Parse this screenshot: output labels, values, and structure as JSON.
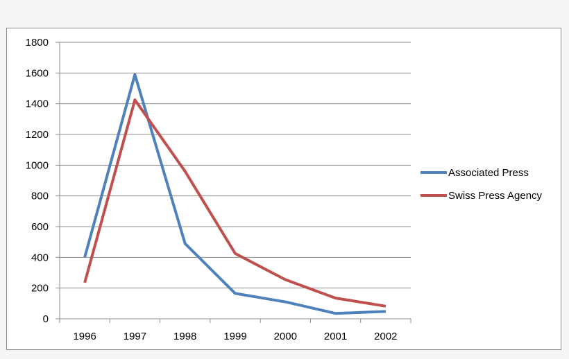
{
  "chart_data": {
    "type": "line",
    "title": "",
    "xlabel": "",
    "ylabel": "",
    "categories": [
      "1996",
      "1997",
      "1998",
      "1999",
      "2000",
      "2001",
      "2002"
    ],
    "ylim": [
      0,
      1800
    ],
    "yticks": [
      0,
      200,
      400,
      600,
      800,
      1000,
      1200,
      1400,
      1600,
      1800
    ],
    "grid": true,
    "legend_position": "right",
    "series": [
      {
        "name": "Associated Press",
        "color": "#4f81bd",
        "values": [
          400,
          1590,
          490,
          165,
          110,
          35,
          48
        ]
      },
      {
        "name": "Swiss Press Agency",
        "color": "#c0504d",
        "values": [
          235,
          1425,
          960,
          425,
          255,
          135,
          82
        ]
      }
    ]
  }
}
